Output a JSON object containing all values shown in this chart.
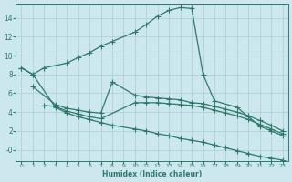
{
  "xlabel": "Humidex (Indice chaleur)",
  "bg_color": "#cce8ee",
  "line_color": "#2d7a6a",
  "grid_color": "#aacdd4",
  "xlim": [
    -0.5,
    23.5
  ],
  "ylim": [
    -1.2,
    15.5
  ],
  "xticks": [
    0,
    1,
    2,
    3,
    4,
    5,
    6,
    7,
    8,
    9,
    10,
    11,
    12,
    13,
    14,
    15,
    16,
    17,
    18,
    19,
    20,
    21,
    22,
    23
  ],
  "yticks": [
    0,
    2,
    4,
    6,
    8,
    10,
    12,
    14
  ],
  "curve1_x": [
    0,
    1,
    2,
    4,
    5,
    6,
    7,
    8,
    10,
    11,
    12,
    13,
    14,
    15,
    16,
    17,
    19,
    20,
    21,
    22,
    23
  ],
  "curve1_y": [
    8.7,
    8.0,
    8.7,
    9.2,
    9.8,
    10.3,
    11.0,
    11.5,
    12.5,
    13.3,
    14.2,
    14.8,
    15.1,
    15.0,
    8.0,
    5.2,
    4.5,
    3.5,
    2.5,
    2.0,
    1.5
  ],
  "curve2_x": [
    1,
    3,
    4,
    5,
    6,
    7,
    8,
    10,
    11,
    12,
    13,
    14,
    15,
    16,
    17,
    18,
    19,
    20,
    21,
    22,
    23
  ],
  "curve2_y": [
    6.7,
    4.8,
    4.4,
    4.2,
    4.0,
    3.9,
    7.2,
    5.8,
    5.6,
    5.5,
    5.4,
    5.3,
    5.0,
    4.9,
    4.6,
    4.3,
    4.0,
    3.6,
    3.1,
    2.6,
    2.0
  ],
  "curve3_x": [
    2,
    3,
    4,
    5,
    6,
    7,
    10,
    11,
    12,
    13,
    14,
    15,
    16,
    17,
    18,
    19,
    20,
    21,
    22,
    23
  ],
  "curve3_y": [
    4.7,
    4.6,
    4.1,
    3.8,
    3.5,
    3.3,
    5.0,
    5.0,
    5.0,
    4.9,
    4.8,
    4.7,
    4.5,
    4.2,
    3.9,
    3.6,
    3.2,
    2.7,
    2.2,
    1.7
  ],
  "curve4_x": [
    0,
    1,
    3,
    4,
    5,
    6,
    7,
    8,
    10,
    11,
    12,
    13,
    14,
    15,
    16,
    17,
    18,
    19,
    20,
    21,
    22,
    23
  ],
  "curve4_y": [
    8.7,
    8.0,
    4.5,
    3.9,
    3.5,
    3.2,
    2.9,
    2.6,
    2.2,
    2.0,
    1.7,
    1.5,
    1.2,
    1.0,
    0.8,
    0.5,
    0.2,
    -0.1,
    -0.4,
    -0.7,
    -0.9,
    -1.1
  ]
}
